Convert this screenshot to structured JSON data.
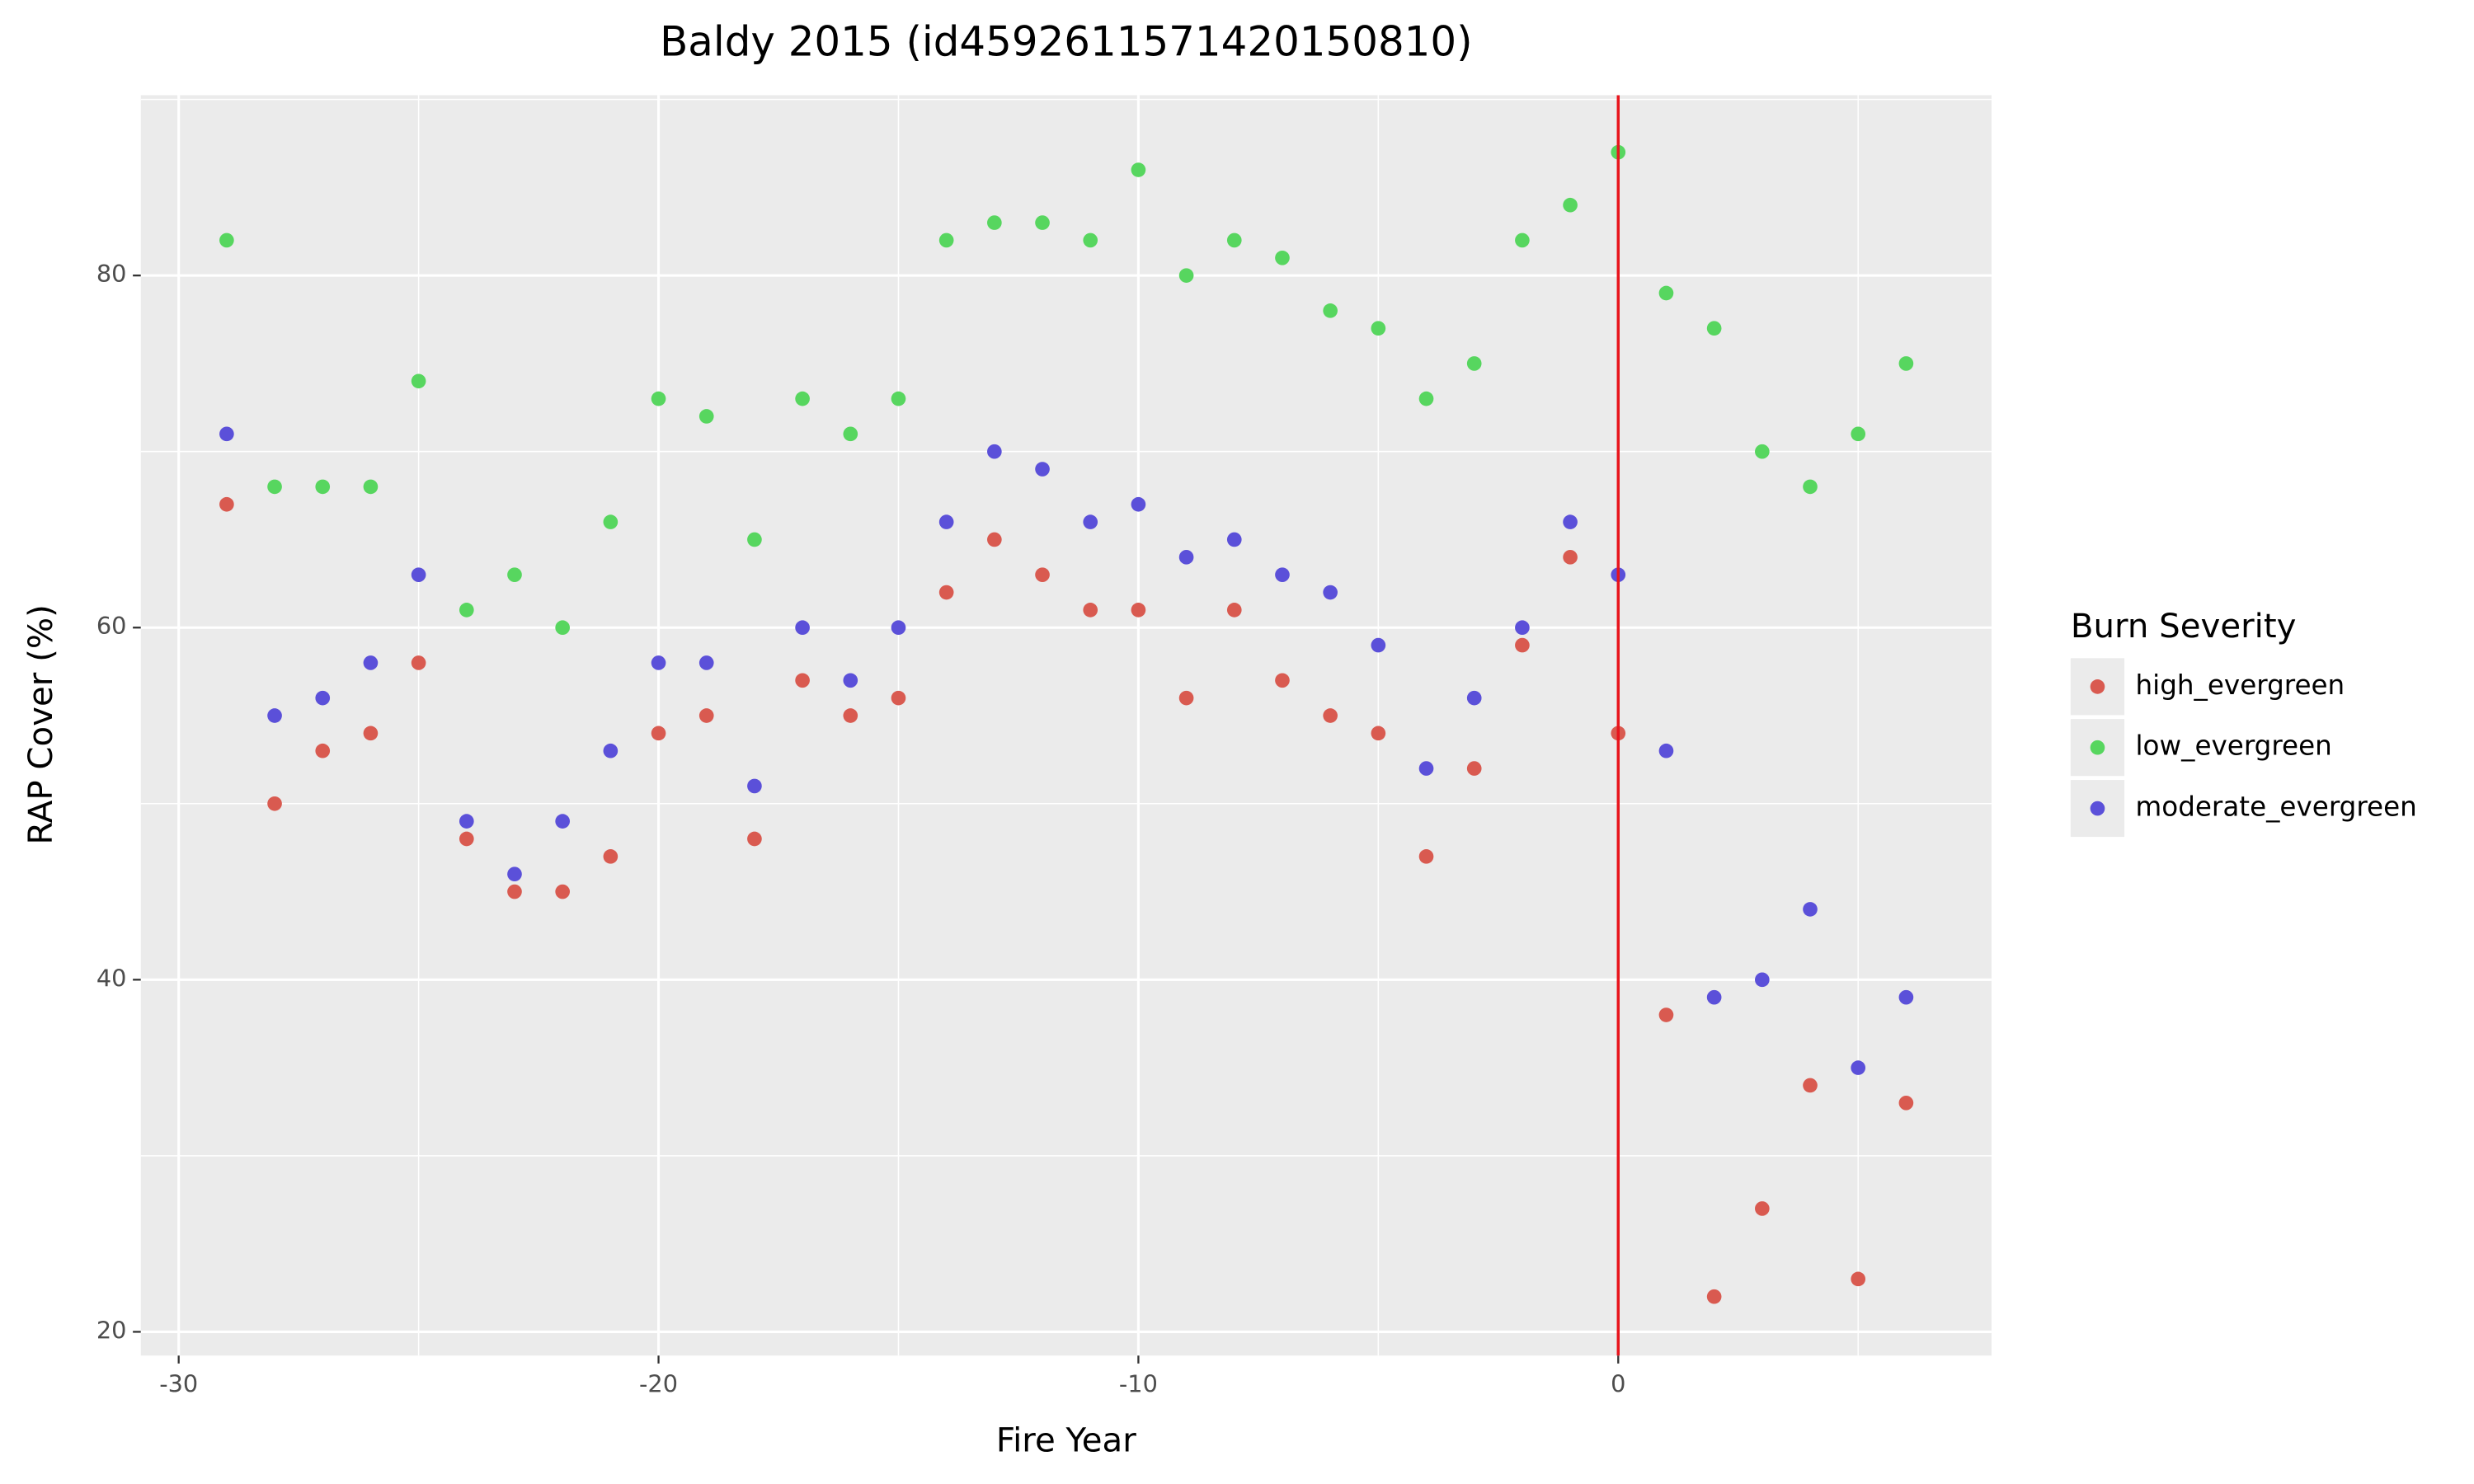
{
  "chart_data": {
    "type": "scatter",
    "title": "Baldy 2015 (id4592611571420150810)",
    "x_label": "Fire Year",
    "y_label": "RAP Cover (%)",
    "legend_title": "Burn Severity",
    "legend_position": "right",
    "x": [
      -29,
      -28,
      -27,
      -26,
      -25,
      -24,
      -23,
      -22,
      -21,
      -20,
      -19,
      -18,
      -17,
      -16,
      -15,
      -14,
      -13,
      -12,
      -11,
      -10,
      -9,
      -8,
      -7,
      -6,
      -5,
      -4,
      -3,
      -2,
      -1,
      0,
      1,
      2,
      3,
      4,
      5,
      6
    ],
    "series": [
      {
        "name": "high_evergreen",
        "color": "#d95a50",
        "values": [
          67,
          50,
          53,
          54,
          58,
          48,
          45,
          45,
          47,
          54,
          55,
          48,
          57,
          55,
          56,
          62,
          65,
          63,
          61,
          61,
          56,
          61,
          57,
          55,
          54,
          47,
          52,
          59,
          64,
          54,
          38,
          22,
          27,
          34,
          23,
          33
        ]
      },
      {
        "name": "low_evergreen",
        "color": "#57d65f",
        "values": [
          82,
          68,
          68,
          68,
          74,
          61,
          63,
          60,
          66,
          73,
          72,
          65,
          73,
          71,
          73,
          82,
          83,
          83,
          82,
          86,
          80,
          82,
          81,
          78,
          77,
          73,
          75,
          82,
          84,
          87,
          79,
          77,
          70,
          68,
          71,
          75
        ]
      },
      {
        "name": "moderate_evergreen",
        "color": "#5b50d9",
        "values": [
          71,
          55,
          56,
          58,
          63,
          49,
          46,
          49,
          53,
          58,
          58,
          51,
          60,
          57,
          60,
          66,
          70,
          69,
          66,
          67,
          64,
          65,
          63,
          62,
          59,
          52,
          56,
          60,
          66,
          63,
          53,
          39,
          40,
          44,
          35,
          39
        ]
      }
    ],
    "xlim": [
      -30.79,
      7.78
    ],
    "xticks": [
      -30,
      -20,
      -10,
      0
    ],
    "ylim": [
      18.65,
      90.24
    ],
    "yticks": [
      20,
      40,
      60,
      80
    ],
    "grid": true,
    "vline": {
      "value": 0,
      "color": "#e8141c"
    }
  }
}
